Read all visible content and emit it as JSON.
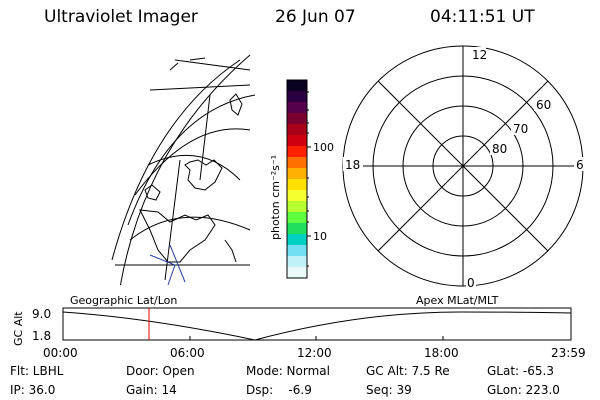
{
  "header": {
    "title": "Ultraviolet Imager",
    "date": "26 Jun 07",
    "time": "04:11:51 UT"
  },
  "colorbar": {
    "unit_label": "photon cm⁻²s⁻¹",
    "tick_labels": [
      "100",
      "10"
    ],
    "colors": [
      "#0a0020",
      "#2a0040",
      "#55004a",
      "#7a0030",
      "#a80018",
      "#d00010",
      "#ff2000",
      "#ff7000",
      "#ffb000",
      "#ffe000",
      "#f6ff30",
      "#b8ff30",
      "#60ff40",
      "#20e060",
      "#00d0c0",
      "#70e0f0",
      "#c0f0f8",
      "#eaf8fa"
    ]
  },
  "polar": {
    "clock_labels": [
      "12",
      "18",
      "6",
      "0"
    ],
    "lat_labels": [
      "60",
      "70",
      "80"
    ]
  },
  "timeline": {
    "left_title": "Geographic Lat/Lon",
    "right_title": "Apex MLat/MLT",
    "y_label": "GC Alt",
    "y_ticks": [
      "9.0",
      "1.8"
    ],
    "x_ticks": [
      "00:00",
      "06:00",
      "12:00",
      "18:00",
      "23:59"
    ],
    "marker_time": "04:11:51",
    "marker_color": "#e00000"
  },
  "footer": {
    "filter": "Flt: LBHL",
    "ip": "IP: 36.0",
    "door": "Door: Open",
    "gain": "Gain: 14",
    "mode": "Mode: Normal",
    "dsp": "Dsp:    -6.9",
    "gc_alt": "GC Alt: 7.5 Re",
    "seq": "Seq: 39",
    "glat": "GLat: -65.3",
    "glon": "GLon: 223.0"
  }
}
